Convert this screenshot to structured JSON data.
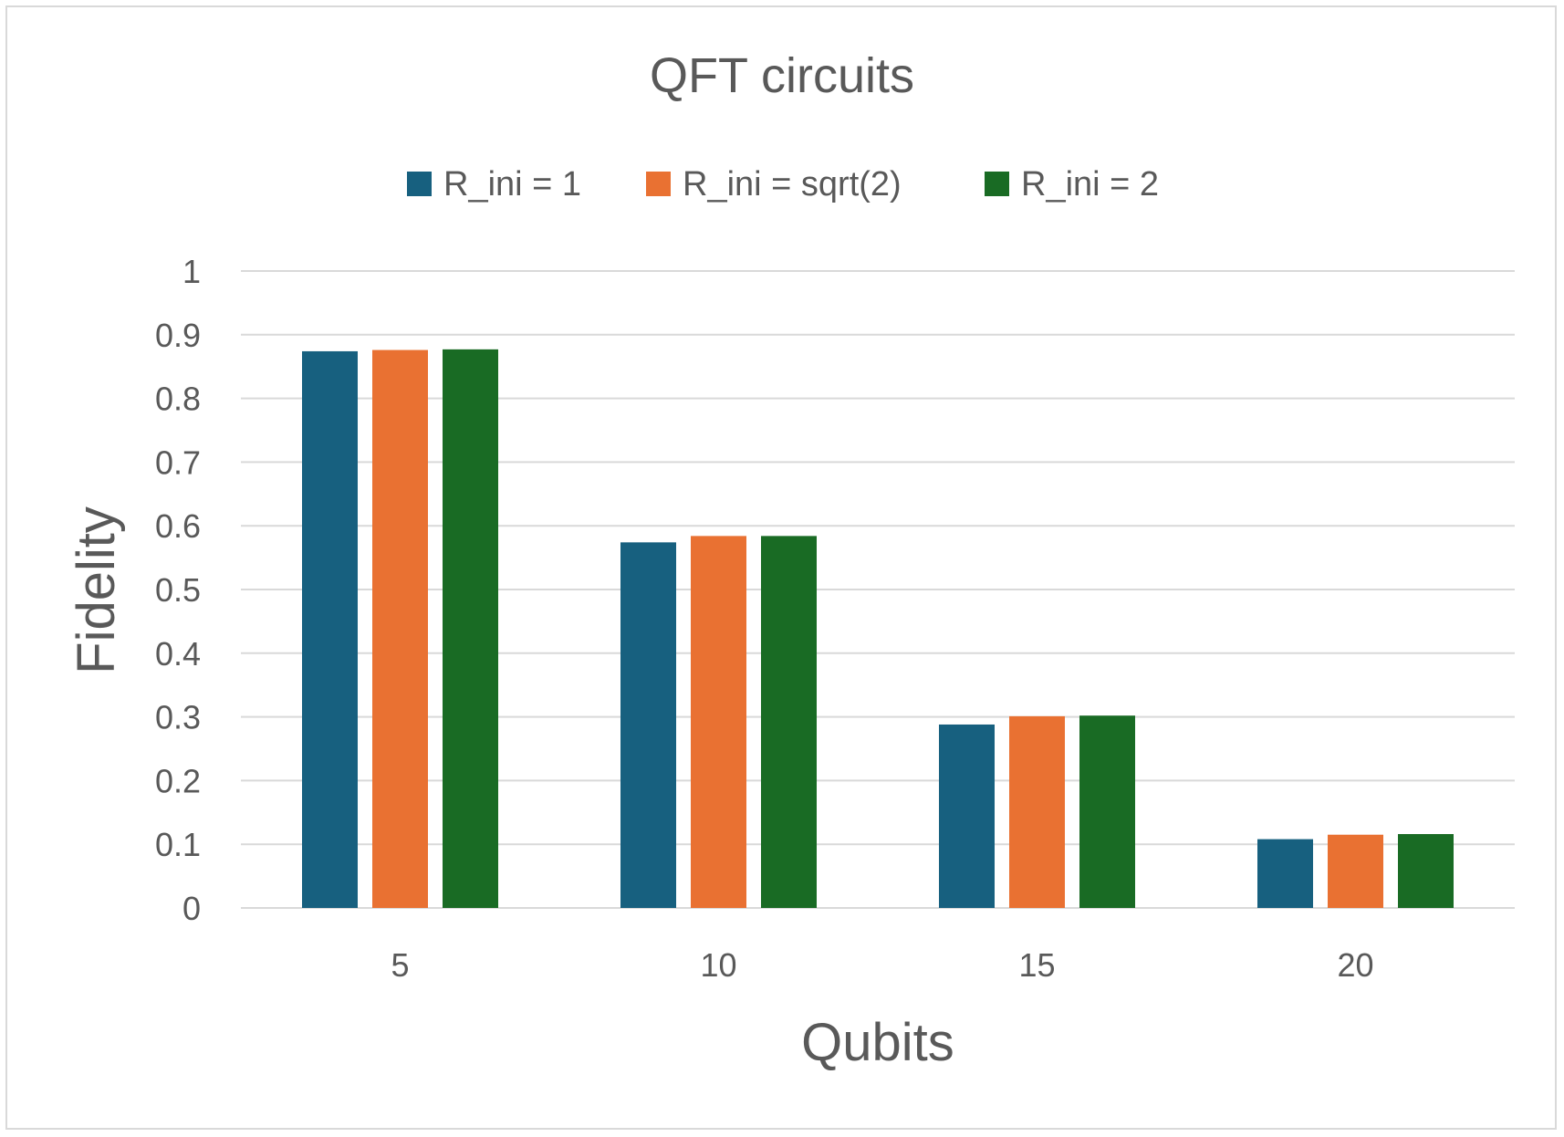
{
  "chart_data": {
    "type": "bar",
    "title": "QFT circuits",
    "xlabel": "Qubits",
    "ylabel": "Fidelity",
    "categories": [
      "5",
      "10",
      "15",
      "20"
    ],
    "series": [
      {
        "name": "R_ini = 1",
        "color": "#17607f",
        "values": [
          0.874,
          0.574,
          0.288,
          0.108
        ]
      },
      {
        "name": "R_ini = sqrt(2)",
        "color": "#e97132",
        "values": [
          0.876,
          0.584,
          0.301,
          0.115
        ]
      },
      {
        "name": "R_ini = 2",
        "color": "#196b24",
        "values": [
          0.877,
          0.584,
          0.302,
          0.116
        ]
      }
    ],
    "ylim": [
      0,
      1
    ],
    "yticks": [
      "0",
      "0.1",
      "0.2",
      "0.3",
      "0.4",
      "0.5",
      "0.6",
      "0.7",
      "0.8",
      "0.9",
      "1"
    ],
    "grid": true,
    "legend_position": "top"
  }
}
